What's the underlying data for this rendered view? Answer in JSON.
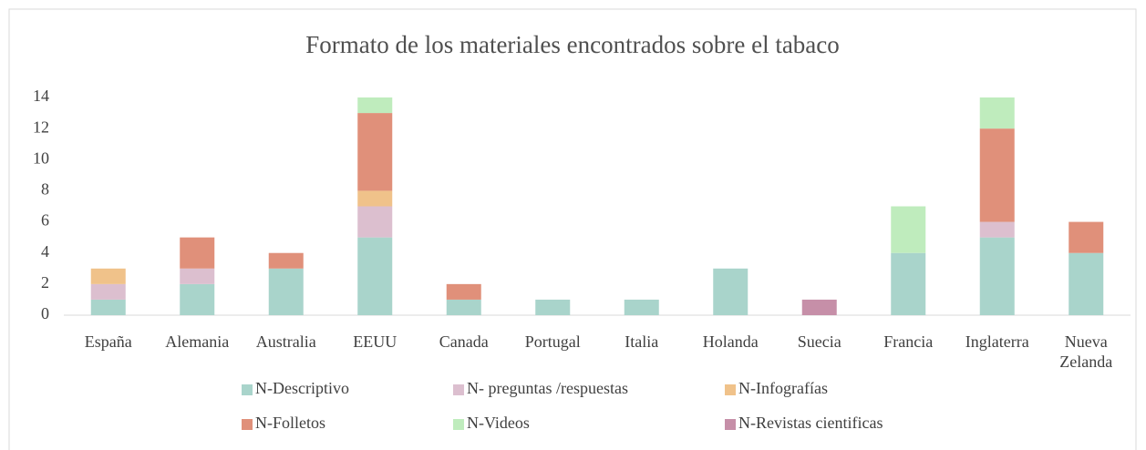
{
  "chart_data": {
    "type": "stacked_bar",
    "title": "Formato de los materiales encontrados sobre el tabaco",
    "categories": [
      "España",
      "Alemania",
      "Australia",
      "EEUU",
      "Canada",
      "Portugal",
      "Italia",
      "Holanda",
      "Suecia",
      "Francia",
      "Inglaterra",
      "Nueva Zelanda"
    ],
    "series": [
      {
        "name": "N-Descriptivo",
        "color": "#a9d4cb",
        "values": [
          1,
          2,
          3,
          5,
          1,
          1,
          1,
          3,
          0,
          4,
          5,
          4
        ]
      },
      {
        "name": "N- preguntas /respuestas",
        "color": "#dcbfcf",
        "values": [
          1,
          1,
          0,
          2,
          0,
          0,
          0,
          0,
          0,
          0,
          1,
          0
        ]
      },
      {
        "name": "N-Infografías",
        "color": "#f0c28a",
        "values": [
          1,
          0,
          0,
          1,
          0,
          0,
          0,
          0,
          0,
          0,
          0,
          0
        ]
      },
      {
        "name": "N-Folletos",
        "color": "#e0907a",
        "values": [
          0,
          2,
          1,
          5,
          1,
          0,
          0,
          0,
          0,
          0,
          6,
          2
        ]
      },
      {
        "name": "N-Videos",
        "color": "#bfecbd",
        "values": [
          0,
          0,
          0,
          1,
          0,
          0,
          0,
          0,
          0,
          3,
          2,
          0
        ]
      },
      {
        "name": "N-Revistas cientificas",
        "color": "#c68fa8",
        "values": [
          0,
          0,
          0,
          0,
          0,
          0,
          0,
          0,
          1,
          0,
          0,
          0
        ]
      }
    ],
    "ylim": [
      0,
      14
    ],
    "yticks": [
      0,
      2,
      4,
      6,
      8,
      10,
      12,
      14
    ],
    "grid": false,
    "legend": "bottom"
  }
}
